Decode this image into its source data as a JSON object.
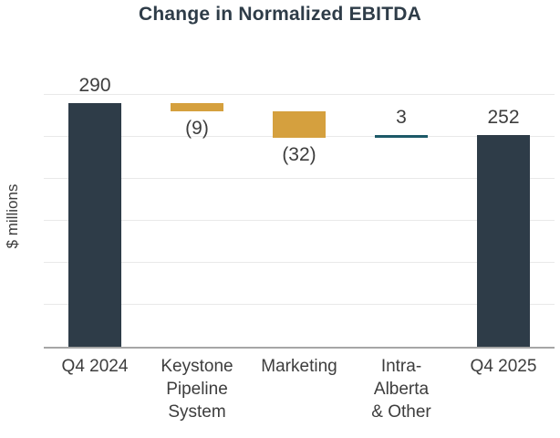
{
  "page": {
    "background": "#ffffff"
  },
  "chart_data": {
    "type": "bar",
    "subtype": "waterfall",
    "title": "Change in Normalized EBITDA",
    "xlabel": "",
    "ylabel": "$ millions",
    "ylim": [
      0,
      310
    ],
    "grid": {
      "show": true,
      "interval": 50,
      "max": 300
    },
    "legend": "none",
    "colors": {
      "total": "#2e3c48",
      "decrease": "#d5a03e",
      "increase": "#1d5968",
      "gridline": "#e9e9e9",
      "axis": "#a6a6a6",
      "title_text": "#2e3c48",
      "label_text": "#3d3d3d"
    },
    "categories": [
      "Q4 2024",
      "Keystone Pipeline System",
      "Marketing",
      "Intra-Alberta & Other",
      "Q4 2025"
    ],
    "bars": [
      {
        "category": "Q4 2024",
        "category_lines": [
          "Q4 2024"
        ],
        "value": 290,
        "value_label": "290",
        "label_position": "above",
        "start": 0,
        "end": 290,
        "role": "total"
      },
      {
        "category": "Keystone Pipeline System",
        "category_lines": [
          "Keystone",
          "Pipeline",
          "System"
        ],
        "value": -9,
        "value_label": "(9)",
        "label_position": "below",
        "start": 290,
        "end": 281,
        "role": "decrease"
      },
      {
        "category": "Marketing",
        "category_lines": [
          "Marketing"
        ],
        "value": -32,
        "value_label": "(32)",
        "label_position": "below",
        "start": 281,
        "end": 249,
        "role": "decrease"
      },
      {
        "category": "Intra-Alberta & Other",
        "category_lines": [
          "Intra-",
          "Alberta",
          "& Other"
        ],
        "value": 3,
        "value_label": "3",
        "label_position": "above",
        "start": 249,
        "end": 252,
        "role": "increase"
      },
      {
        "category": "Q4 2025",
        "category_lines": [
          "Q4 2025"
        ],
        "value": 252,
        "value_label": "252",
        "label_position": "above",
        "start": 0,
        "end": 252,
        "role": "total"
      }
    ]
  }
}
